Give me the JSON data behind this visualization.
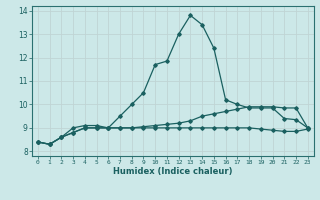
{
  "xlabel": "Humidex (Indice chaleur)",
  "background_color": "#cce8e8",
  "grid_color": "#c0d4d4",
  "line_color": "#1a6060",
  "spine_color": "#2a7070",
  "xlim": [
    -0.5,
    23.5
  ],
  "ylim": [
    7.8,
    14.2
  ],
  "xticks": [
    0,
    1,
    2,
    3,
    4,
    5,
    6,
    7,
    8,
    9,
    10,
    11,
    12,
    13,
    14,
    15,
    16,
    17,
    18,
    19,
    20,
    21,
    22,
    23
  ],
  "yticks": [
    8,
    9,
    10,
    11,
    12,
    13,
    14
  ],
  "series": [
    [
      8.4,
      8.3,
      8.6,
      9.0,
      9.1,
      9.1,
      9.0,
      9.5,
      10.0,
      10.5,
      11.7,
      11.85,
      13.0,
      13.8,
      13.4,
      12.4,
      10.2,
      10.0,
      9.85,
      9.85,
      9.85,
      9.4,
      9.35,
      9.0
    ],
    [
      8.4,
      8.3,
      8.6,
      8.8,
      9.0,
      9.0,
      9.0,
      9.0,
      9.0,
      9.05,
      9.1,
      9.15,
      9.2,
      9.3,
      9.5,
      9.6,
      9.7,
      9.8,
      9.9,
      9.9,
      9.9,
      9.85,
      9.85,
      9.0
    ],
    [
      8.4,
      8.3,
      8.6,
      8.8,
      9.0,
      9.0,
      9.0,
      9.0,
      9.0,
      9.0,
      9.0,
      9.0,
      9.0,
      9.0,
      9.0,
      9.0,
      9.0,
      9.0,
      9.0,
      8.95,
      8.9,
      8.85,
      8.85,
      8.95
    ]
  ]
}
